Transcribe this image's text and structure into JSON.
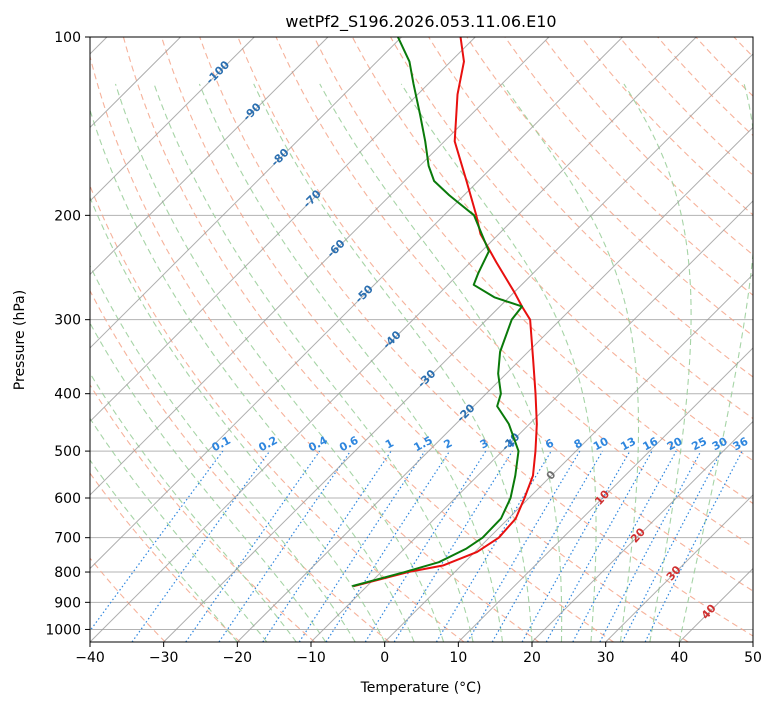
{
  "chart_data": {
    "type": "skew-t",
    "title": "wetPf2_S196.2026.053.11.06.E10",
    "xlabel": "Temperature (°C)",
    "ylabel": "Pressure (hPa)",
    "xlim": [
      -40,
      50
    ],
    "ylim_hpa": [
      1050,
      100
    ],
    "skew_factor": 35,
    "x_ticks": [
      -40,
      -30,
      -20,
      -10,
      0,
      10,
      20,
      30,
      40,
      50
    ],
    "x_tick_labels": [
      "−40",
      "−30",
      "−20",
      "−10",
      "0",
      "10",
      "20",
      "30",
      "40",
      "50"
    ],
    "y_ticks": [
      100,
      200,
      300,
      400,
      500,
      600,
      700,
      800,
      900,
      1000
    ],
    "y_tick_labels": [
      "100",
      "200",
      "300",
      "400",
      "500",
      "600",
      "700",
      "800",
      "900",
      "1000"
    ],
    "colors": {
      "temperature": "#e8100f",
      "dewpoint": "#0a7a0a",
      "isotherm": "#9a9a9a",
      "dry_adiabat": "#f4a58a",
      "moist_adiabat": "#9ccf9c",
      "mixing_ratio": "#2e86de",
      "isotherm_label": "#2b6fb0",
      "moist_label": "#d03030",
      "zero_label": "#707070",
      "grid": "#b3b3b3",
      "frame": "#000000"
    },
    "series": [
      {
        "name": "Temperature",
        "points": [
          {
            "p": 845,
            "t": -11.8
          },
          {
            "p": 800,
            "t": -6.3
          },
          {
            "p": 780,
            "t": -2.5
          },
          {
            "p": 740,
            "t": 0.3
          },
          {
            "p": 700,
            "t": 1.3
          },
          {
            "p": 650,
            "t": 1.0
          },
          {
            "p": 600,
            "t": -0.6
          },
          {
            "p": 550,
            "t": -2.5
          },
          {
            "p": 500,
            "t": -5.5
          },
          {
            "p": 450,
            "t": -9.0
          },
          {
            "p": 400,
            "t": -13.3
          },
          {
            "p": 350,
            "t": -18.3
          },
          {
            "p": 300,
            "t": -24.1
          },
          {
            "p": 285,
            "t": -27.0
          },
          {
            "p": 270,
            "t": -29.9
          },
          {
            "p": 240,
            "t": -36.5
          },
          {
            "p": 215,
            "t": -42.5
          },
          {
            "p": 200,
            "t": -45.6
          },
          {
            "p": 175,
            "t": -51.6
          },
          {
            "p": 150,
            "t": -58.6
          },
          {
            "p": 125,
            "t": -64.6
          },
          {
            "p": 110,
            "t": -68.2
          },
          {
            "p": 100,
            "t": -72.0
          }
        ]
      },
      {
        "name": "Dewpoint",
        "points": [
          {
            "p": 845,
            "t": -12.0
          },
          {
            "p": 800,
            "t": -6.8
          },
          {
            "p": 770,
            "t": -3.5
          },
          {
            "p": 730,
            "t": -1.6
          },
          {
            "p": 700,
            "t": -0.9
          },
          {
            "p": 650,
            "t": -1.0
          },
          {
            "p": 600,
            "t": -2.5
          },
          {
            "p": 550,
            "t": -4.9
          },
          {
            "p": 500,
            "t": -7.8
          },
          {
            "p": 450,
            "t": -12.8
          },
          {
            "p": 420,
            "t": -16.8
          },
          {
            "p": 400,
            "t": -18.0
          },
          {
            "p": 370,
            "t": -21.1
          },
          {
            "p": 340,
            "t": -23.8
          },
          {
            "p": 300,
            "t": -26.6
          },
          {
            "p": 285,
            "t": -27.0
          },
          {
            "p": 275,
            "t": -32.0
          },
          {
            "p": 262,
            "t": -36.5
          },
          {
            "p": 250,
            "t": -37.5
          },
          {
            "p": 230,
            "t": -39.0
          },
          {
            "p": 210,
            "t": -43.5
          },
          {
            "p": 200,
            "t": -45.9
          },
          {
            "p": 185,
            "t": -52.0
          },
          {
            "p": 175,
            "t": -56.0
          },
          {
            "p": 165,
            "t": -58.8
          },
          {
            "p": 150,
            "t": -62.6
          },
          {
            "p": 135,
            "t": -67.0
          },
          {
            "p": 120,
            "t": -72.0
          },
          {
            "p": 110,
            "t": -75.6
          },
          {
            "p": 100,
            "t": -80.5
          }
        ]
      }
    ],
    "isotherm_labels": [
      {
        "text": "-100",
        "t": -100,
        "p": 115
      },
      {
        "text": "-90",
        "t": -90,
        "p": 134
      },
      {
        "text": "-80",
        "t": -80,
        "p": 160
      },
      {
        "text": "-70",
        "t": -70,
        "p": 188
      },
      {
        "text": "-60",
        "t": -60,
        "p": 228
      },
      {
        "text": "-50",
        "t": -50,
        "p": 272
      },
      {
        "text": "-40",
        "t": -40,
        "p": 325
      },
      {
        "text": "-30",
        "t": -30,
        "p": 378
      },
      {
        "text": "-20",
        "t": -20,
        "p": 432
      },
      {
        "text": "-10",
        "t": -10,
        "p": 483
      }
    ],
    "moist_labels": [
      {
        "text": "0",
        "t": 0,
        "p": 550,
        "color_key": "zero_label"
      },
      {
        "text": "10",
        "t": 10,
        "p": 600,
        "color_key": "moist_label"
      },
      {
        "text": "20",
        "t": 20,
        "p": 695,
        "color_key": "moist_label"
      },
      {
        "text": "30",
        "t": 30,
        "p": 805,
        "color_key": "moist_label"
      },
      {
        "text": "40",
        "t": 40,
        "p": 935,
        "color_key": "moist_label"
      }
    ],
    "mixing_ratio_values": [
      0.1,
      0.2,
      0.4,
      0.6,
      1,
      1.5,
      2,
      3,
      4,
      6,
      8,
      10,
      13,
      16,
      20,
      25,
      30,
      36
    ],
    "mixing_ratio_labels": [
      "0.1",
      "0.2",
      "0.4",
      "0.6",
      "1",
      "1.5",
      "2",
      "3",
      "4",
      "6",
      "8",
      "10",
      "13",
      "16",
      "20",
      "25",
      "30",
      "36"
    ],
    "mixing_ratio_label_pressure": 500
  }
}
